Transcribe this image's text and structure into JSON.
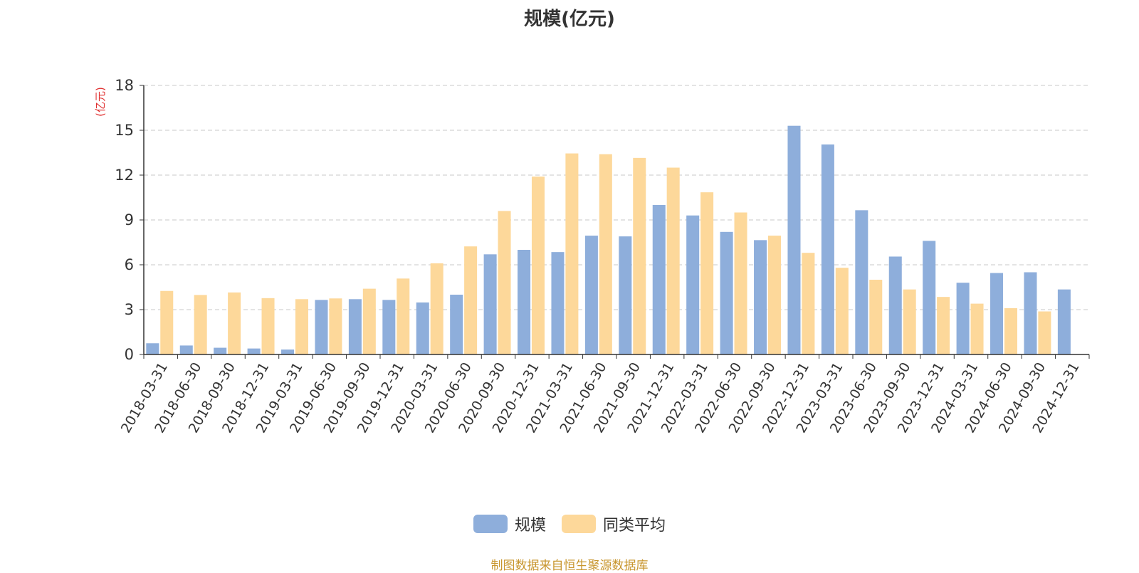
{
  "chart_data": {
    "type": "bar",
    "title": "规模(亿元)",
    "ylabel": "(亿元)",
    "ylim": [
      0,
      18
    ],
    "yticks": [
      "0",
      "3",
      "6",
      "9",
      "12",
      "15",
      "18"
    ],
    "grid": true,
    "legend_position": "bottom",
    "categories": [
      "2018-03-31",
      "2018-06-30",
      "2018-09-30",
      "2018-12-31",
      "2019-03-31",
      "2019-06-30",
      "2019-09-30",
      "2019-12-31",
      "2020-03-31",
      "2020-06-30",
      "2020-09-30",
      "2020-12-31",
      "2021-03-31",
      "2021-06-30",
      "2021-09-30",
      "2021-12-31",
      "2022-03-31",
      "2022-06-30",
      "2022-09-30",
      "2022-12-31",
      "2023-03-31",
      "2023-06-30",
      "2023-09-30",
      "2023-12-31",
      "2024-03-31",
      "2024-06-30",
      "2024-09-30",
      "2024-12-31"
    ],
    "series": [
      {
        "name": "规模",
        "color": "#8eaedb",
        "values": [
          0.75,
          0.6,
          0.45,
          0.4,
          0.33,
          3.65,
          3.7,
          3.65,
          3.48,
          4.0,
          6.7,
          7.0,
          6.85,
          7.95,
          7.9,
          10.0,
          9.3,
          8.2,
          7.65,
          15.3,
          14.05,
          9.65,
          6.55,
          7.6,
          4.8,
          5.45,
          5.5,
          4.35
        ]
      },
      {
        "name": "同类平均",
        "color": "#fdd89a",
        "values": [
          4.25,
          3.98,
          4.15,
          3.77,
          3.7,
          3.75,
          4.4,
          5.08,
          6.1,
          7.23,
          9.6,
          11.9,
          13.45,
          13.4,
          13.15,
          12.5,
          10.85,
          9.5,
          7.95,
          6.8,
          5.8,
          5.0,
          4.35,
          3.85,
          3.4,
          3.1,
          2.88,
          null
        ]
      }
    ]
  },
  "source_text": "制图数据来自恒生聚源数据库",
  "source_color": "#c8962e",
  "ylabel_color": "#e03030"
}
